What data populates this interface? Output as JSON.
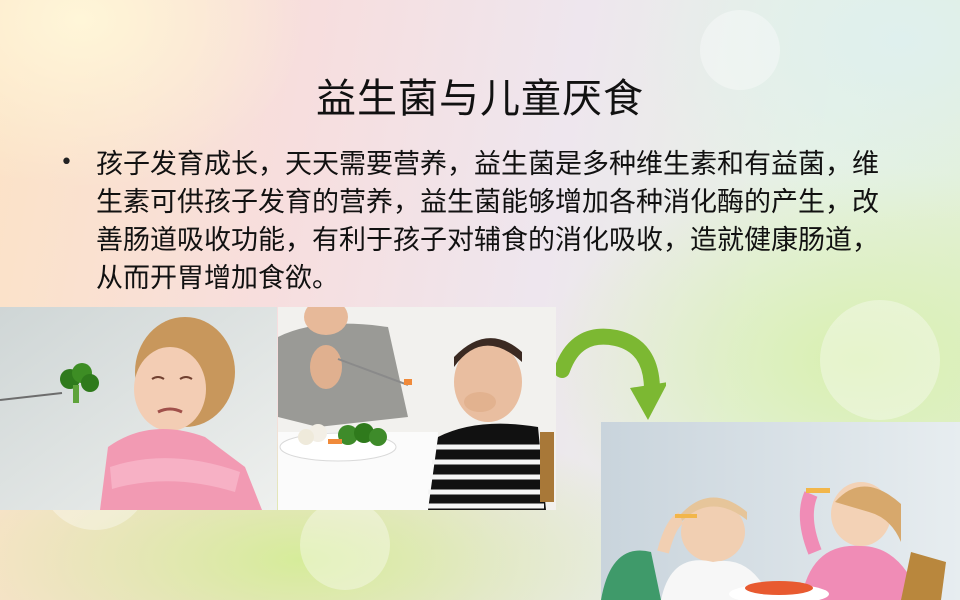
{
  "slide": {
    "title": "益生菌与儿童厌食",
    "bullet_symbol": "•",
    "bullet_text": "孩子发育成长，天天需要营养，益生菌是多种维生素和有益菌，维生素可供孩子发育的营养，益生菌能够增加各种消化酶的产生，改善肠道吸收功能，有利于孩子对辅食的消化吸收，造就健康肠道，从而开胃增加食欲。"
  },
  "images": [
    {
      "name": "girl-refusing-broccoli"
    },
    {
      "name": "boy-refusing-vegetables"
    },
    {
      "name": "children-eating-happily"
    }
  ],
  "colors": {
    "arrow": "#7cb832",
    "text": "#111111"
  }
}
